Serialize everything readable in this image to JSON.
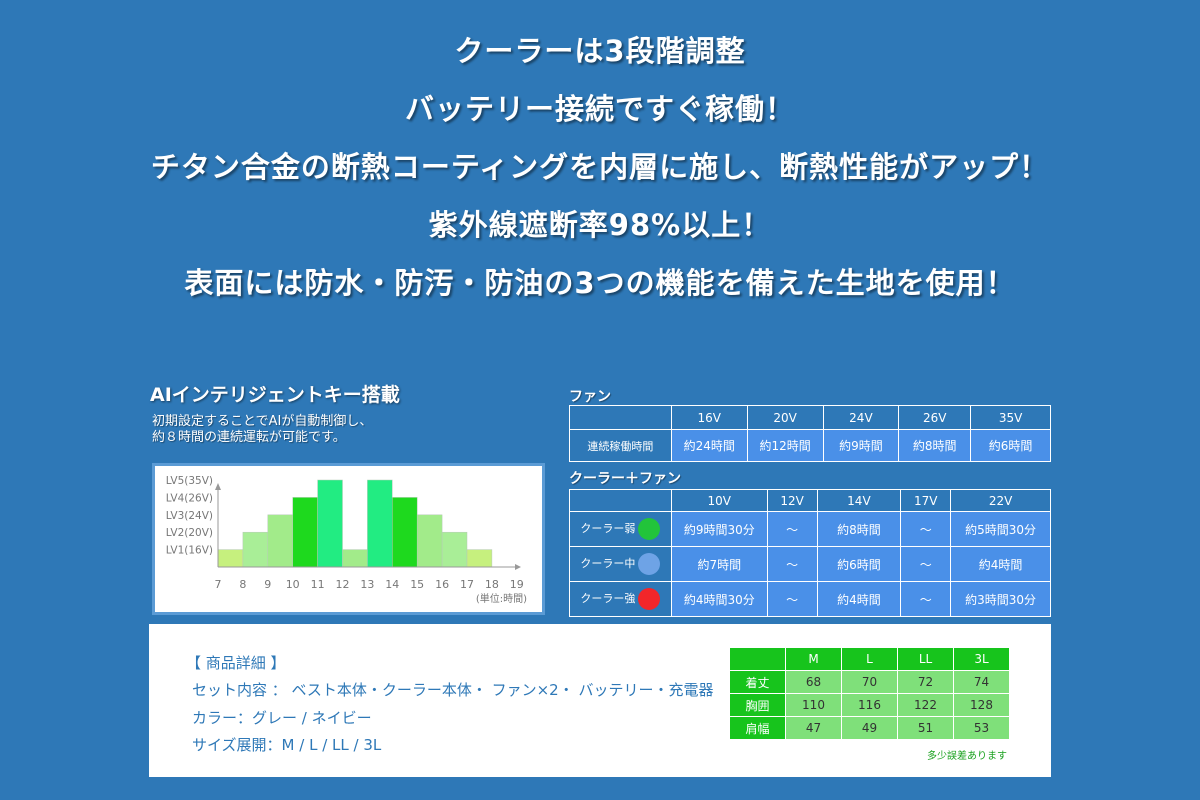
{
  "headlines": [
    "クーラーは3段階調整",
    "バッテリー接続ですぐ稼働！",
    "チタン合金の断熱コーティングを内層に施し、断熱性能がアップ！",
    "紫外線遮断率98%以上！",
    "表面には防水・防汚・防油の3つの機能を備えた生地を使用！"
  ],
  "ai": {
    "title": "AIインテリジェントキー搭載",
    "desc": [
      "初期設定することでAIが自動制御し、",
      "約８時間の連続運転が可能です。"
    ]
  },
  "chart_data": {
    "type": "bar",
    "x": [
      7,
      8,
      9,
      10,
      11,
      12,
      13,
      14,
      15,
      16,
      17,
      18
    ],
    "values": [
      1,
      2,
      3,
      4,
      5,
      1,
      5,
      4,
      3,
      2,
      1,
      0
    ],
    "colors": [
      "#c6f07e",
      "#a9ee97",
      "#a2eb8a",
      "#1ed91e",
      "#22ec82",
      "#a2eb8a",
      "#22ec82",
      "#1ed91e",
      "#a2eb8a",
      "#a9ee97",
      "#c6f07e",
      "#ffffff"
    ],
    "xticks": [
      "7",
      "8",
      "9",
      "10",
      "11",
      "12",
      "13",
      "14",
      "15",
      "16",
      "17",
      "18",
      "19"
    ],
    "yticks": [
      "LV1(16V)",
      "LV2(20V)",
      "LV3(24V)",
      "LV4(26V)",
      "LV5(35V)"
    ],
    "ylim": [
      0,
      5
    ],
    "unit": "(単位:時間)"
  },
  "fan": {
    "label": "ファン",
    "headers": [
      "",
      "16V",
      "20V",
      "24V",
      "26V",
      "35V"
    ],
    "row_label": "連続稼働時間",
    "values": [
      "約24時間",
      "約12時間",
      "約9時間",
      "約8時間",
      "約6時間"
    ]
  },
  "cooler": {
    "label": "クーラー＋ファン",
    "headers": [
      "",
      "10V",
      "12V",
      "14V",
      "17V",
      "22V"
    ],
    "rows": [
      {
        "label": "クーラー弱",
        "dot": "#22c43a",
        "values": [
          "約9時間30分",
          "～",
          "約8時間",
          "～",
          "約5時間30分"
        ]
      },
      {
        "label": "クーラー中",
        "dot": "#6ea3e6",
        "values": [
          "約7時間",
          "～",
          "約6時間",
          "～",
          "約4時間"
        ]
      },
      {
        "label": "クーラー強",
        "dot": "#f2262a",
        "values": [
          "約4時間30分",
          "～",
          "約4時間",
          "～",
          "約3時間30分"
        ]
      }
    ]
  },
  "details": {
    "title": "【 商品詳細 】",
    "set_contents": "セット内容 ： ベスト本体・クーラー本体・ ファン×2・ バッテリー・充電器",
    "color": "カラー：グレー / ネイビー",
    "sizes": "サイズ展開：M / L / LL / 3L"
  },
  "size_table": {
    "headers": [
      "M",
      "L",
      "LL",
      "3L"
    ],
    "rows": [
      {
        "label": "着丈",
        "values": [
          "68",
          "70",
          "72",
          "74"
        ]
      },
      {
        "label": "胸囲",
        "values": [
          "110",
          "116",
          "122",
          "128"
        ]
      },
      {
        "label": "肩幅",
        "values": [
          "47",
          "49",
          "51",
          "53"
        ]
      }
    ],
    "note": "多少誤差あります"
  }
}
